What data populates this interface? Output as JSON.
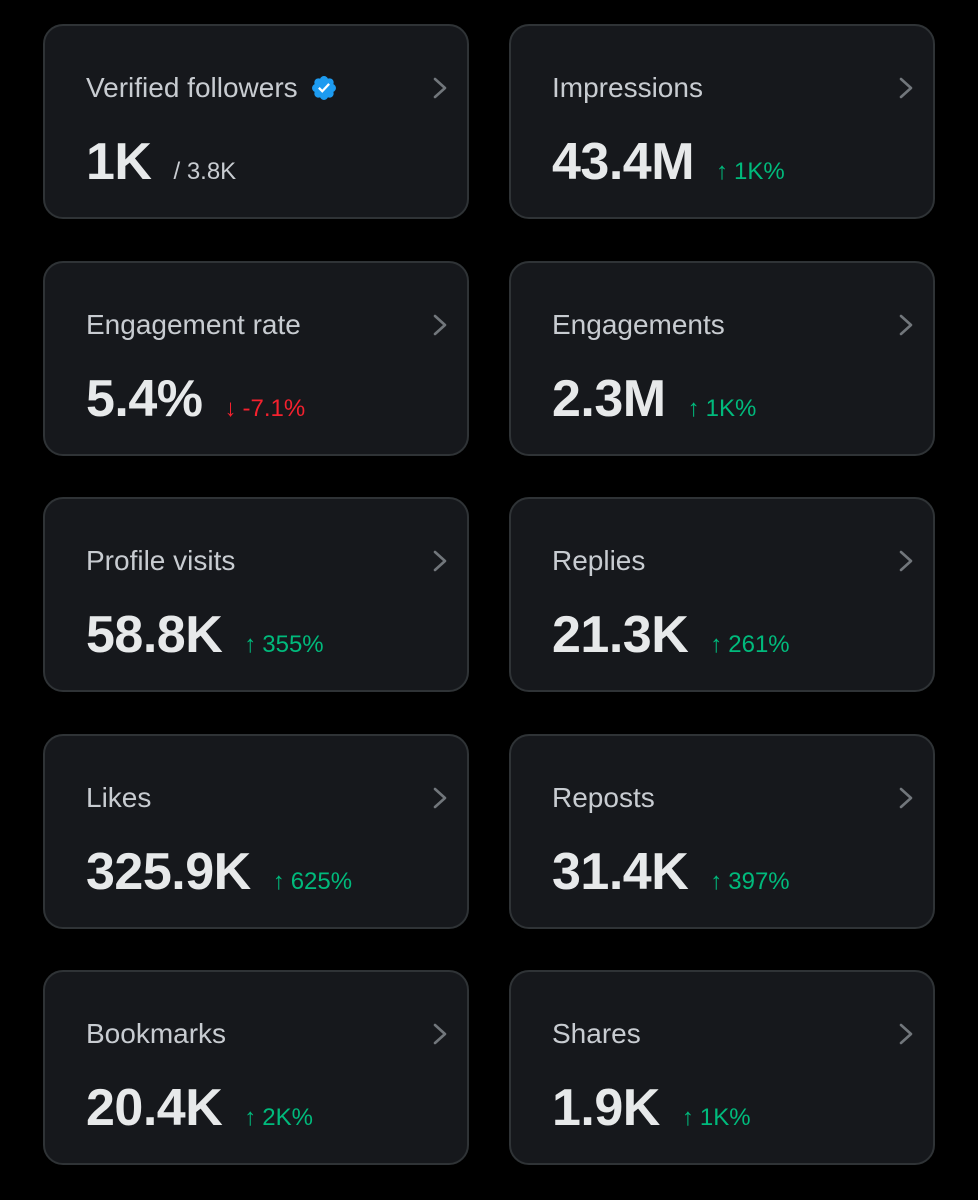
{
  "colors": {
    "background": "#000000",
    "card": "#16181c",
    "card_border": "#2f3336",
    "positive": "#00ba7c",
    "negative": "#f4212e",
    "verified_badge": "#1d9bf0"
  },
  "icons": {
    "verified": "verified-badge-icon",
    "chevron": "chevron-right-icon",
    "up": "arrow-up",
    "down": "arrow-down"
  },
  "cards": [
    {
      "title": "Verified followers",
      "value": "1K",
      "sub": "/ 3.8K",
      "change": "",
      "direction": ""
    },
    {
      "title": "Impressions",
      "value": "43.4M",
      "sub": "",
      "change": "1K%",
      "direction": "up"
    },
    {
      "title": "Engagement rate",
      "value": "5.4%",
      "sub": "",
      "change": "-7.1%",
      "direction": "down"
    },
    {
      "title": "Engagements",
      "value": "2.3M",
      "sub": "",
      "change": "1K%",
      "direction": "up"
    },
    {
      "title": "Profile visits",
      "value": "58.8K",
      "sub": "",
      "change": "355%",
      "direction": "up"
    },
    {
      "title": "Replies",
      "value": "21.3K",
      "sub": "",
      "change": "261%",
      "direction": "up"
    },
    {
      "title": "Likes",
      "value": "325.9K",
      "sub": "",
      "change": "625%",
      "direction": "up"
    },
    {
      "title": "Reposts",
      "value": "31.4K",
      "sub": "",
      "change": "397%",
      "direction": "up"
    },
    {
      "title": "Bookmarks",
      "value": "20.4K",
      "sub": "",
      "change": "2K%",
      "direction": "up"
    },
    {
      "title": "Shares",
      "value": "1.9K",
      "sub": "",
      "change": "1K%",
      "direction": "up"
    }
  ]
}
